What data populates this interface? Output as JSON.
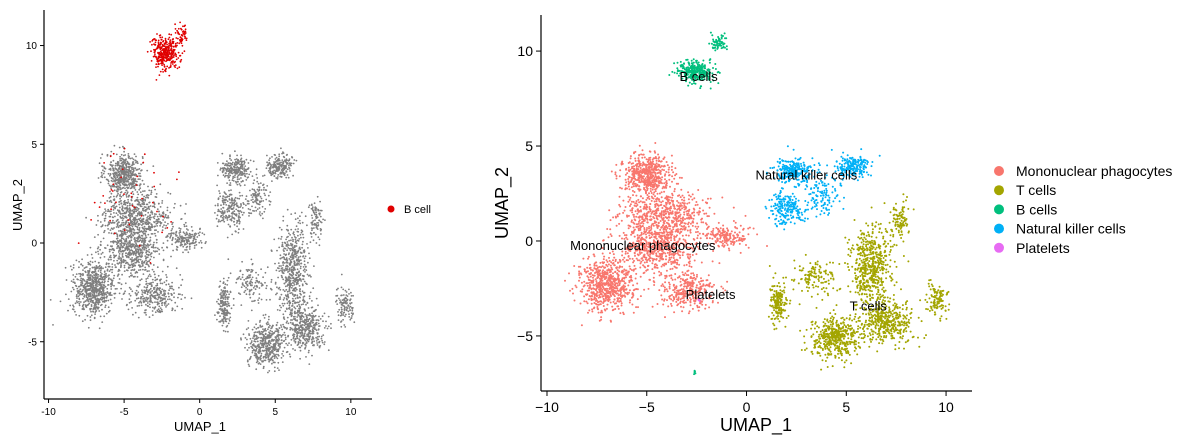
{
  "chart_data": [
    {
      "type": "scatter",
      "panel": "left",
      "xlabel": "UMAP_1",
      "ylabel": "UMAP_2",
      "xlim": [
        -10.3,
        11.4
      ],
      "ylim": [
        -7.9,
        11.8
      ],
      "xticks": [
        -10,
        -5,
        0,
        5,
        10
      ],
      "yticks": [
        -5,
        0,
        5,
        10
      ],
      "xtick_labels": [
        "-10",
        "-5",
        "0",
        "5",
        "10"
      ],
      "ytick_labels": [
        "-5",
        "0",
        "5",
        "10"
      ],
      "grid": false,
      "legend_position": "right",
      "background_color": "#7f7f7f",
      "highlight_color": "#e00000",
      "legend": [
        {
          "label": "B cell",
          "color": "#e00000"
        }
      ],
      "series": [
        {
          "name": "B cell",
          "color": "#e00000",
          "clusters": [
            {
              "cx": -2.3,
              "cy": 9.6,
              "sx": 0.75,
              "sy": 0.7,
              "n": 340
            },
            {
              "cx": -1.2,
              "cy": 10.5,
              "sx": 0.35,
              "sy": 0.35,
              "n": 50
            }
          ]
        }
      ]
    },
    {
      "type": "scatter",
      "panel": "right",
      "xlabel": "UMAP_1",
      "ylabel": "UMAP_2",
      "xlim": [
        -10.3,
        11.3
      ],
      "ylim": [
        -7.9,
        11.9
      ],
      "xticks": [
        -10,
        -5,
        0,
        5,
        10
      ],
      "yticks": [
        -5,
        0,
        5,
        10
      ],
      "xtick_labels": [
        "−10",
        "−5",
        "0",
        "5",
        "10"
      ],
      "ytick_labels": [
        "−5",
        "0",
        "5",
        "10"
      ],
      "grid": false,
      "legend_position": "right",
      "series": [
        {
          "name": "Mononuclear phagocytes",
          "color": "#F8766D",
          "clusters": [
            {
              "cx": -5.0,
              "cy": 3.5,
              "sx": 1.0,
              "sy": 0.85,
              "n": 500
            },
            {
              "cx": -4.2,
              "cy": 1.3,
              "sx": 1.9,
              "sy": 1.1,
              "n": 650
            },
            {
              "cx": -7.0,
              "cy": -2.3,
              "sx": 1.15,
              "sy": 1.1,
              "n": 650
            },
            {
              "cx": -4.5,
              "cy": -0.5,
              "sx": 1.5,
              "sy": 1.0,
              "n": 500
            },
            {
              "cx": -3.0,
              "cy": -2.6,
              "sx": 1.3,
              "sy": 0.8,
              "n": 300
            },
            {
              "cx": -1.0,
              "cy": 0.2,
              "sx": 0.9,
              "sy": 0.5,
              "n": 160
            }
          ]
        },
        {
          "name": "T cells",
          "color": "#A3A500",
          "clusters": [
            {
              "cx": 4.4,
              "cy": -5.1,
              "sx": 1.0,
              "sy": 0.95,
              "n": 450
            },
            {
              "cx": 6.2,
              "cy": -1.3,
              "sx": 0.85,
              "sy": 1.8,
              "n": 550
            },
            {
              "cx": 7.0,
              "cy": -4.3,
              "sx": 1.1,
              "sy": 0.9,
              "n": 400
            },
            {
              "cx": 1.6,
              "cy": -3.2,
              "sx": 0.35,
              "sy": 0.9,
              "n": 170
            },
            {
              "cx": 9.6,
              "cy": -3.1,
              "sx": 0.5,
              "sy": 0.8,
              "n": 110
            },
            {
              "cx": 3.5,
              "cy": -2.0,
              "sx": 0.9,
              "sy": 0.8,
              "n": 120
            },
            {
              "cx": 7.7,
              "cy": 1.0,
              "sx": 0.4,
              "sy": 0.9,
              "n": 90
            }
          ]
        },
        {
          "name": "B cells",
          "color": "#00BF7D",
          "clusters": [
            {
              "cx": -2.6,
              "cy": 8.9,
              "sx": 0.75,
              "sy": 0.45,
              "n": 310
            },
            {
              "cx": -1.4,
              "cy": 10.4,
              "sx": 0.35,
              "sy": 0.35,
              "n": 60
            },
            {
              "cx": -2.6,
              "cy": -6.9,
              "sx": 0.06,
              "sy": 0.15,
              "n": 6
            }
          ]
        },
        {
          "name": "Natural killer cells",
          "color": "#00B0F6",
          "clusters": [
            {
              "cx": 2.4,
              "cy": 3.7,
              "sx": 0.8,
              "sy": 0.55,
              "n": 240
            },
            {
              "cx": 5.3,
              "cy": 3.9,
              "sx": 0.7,
              "sy": 0.5,
              "n": 200
            },
            {
              "cx": 2.0,
              "cy": 1.7,
              "sx": 0.75,
              "sy": 0.8,
              "n": 200
            },
            {
              "cx": 3.8,
              "cy": 2.3,
              "sx": 0.8,
              "sy": 0.8,
              "n": 110
            }
          ]
        },
        {
          "name": "Platelets",
          "color": "#E76BF3",
          "clusters": [
            {
              "cx": -2.4,
              "cy": -3.1,
              "sx": 0.1,
              "sy": 0.1,
              "n": 4
            }
          ]
        }
      ],
      "annotations": [
        {
          "text": "B cells",
          "x": -2.4,
          "y": 8.7
        },
        {
          "text": "Natural killer cells",
          "x": 3.0,
          "y": 3.5
        },
        {
          "text": "Mononuclear phagocytes",
          "x": -5.2,
          "y": -0.2
        },
        {
          "text": "Platelets",
          "x": -1.8,
          "y": -2.8
        },
        {
          "text": "T cells",
          "x": 6.1,
          "y": -3.4
        }
      ],
      "legend": [
        {
          "label": "Mononuclear phagocytes",
          "color": "#F8766D"
        },
        {
          "label": "T cells",
          "color": "#A3A500"
        },
        {
          "label": "B cells",
          "color": "#00BF7D"
        },
        {
          "label": "Natural killer cells",
          "color": "#00B0F6"
        },
        {
          "label": "Platelets",
          "color": "#E76BF3"
        }
      ]
    }
  ]
}
